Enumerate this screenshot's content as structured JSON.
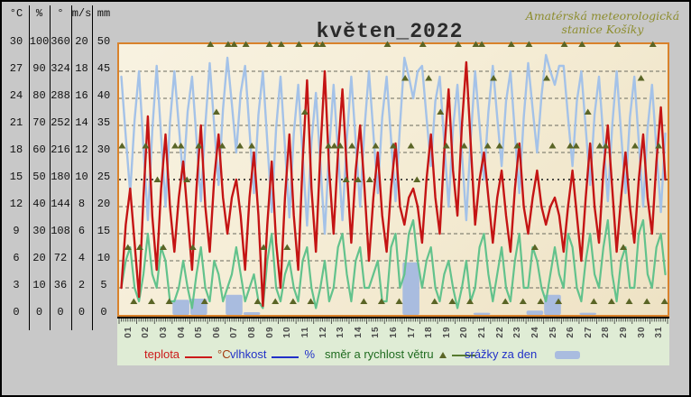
{
  "title": "květen_2022",
  "station": {
    "line1": "Amatérská meteorologická",
    "line2": "stanice Košíky"
  },
  "scale_table": {
    "headers": [
      "°C",
      "%",
      "°",
      "m/s",
      "mm"
    ],
    "rows": [
      [
        "30",
        "100",
        "360",
        "20",
        "50"
      ],
      [
        "27",
        "90",
        "324",
        "18",
        "45"
      ],
      [
        "24",
        "80",
        "288",
        "16",
        "40"
      ],
      [
        "21",
        "70",
        "252",
        "14",
        "35"
      ],
      [
        "18",
        "60",
        "216",
        "12",
        "30"
      ],
      [
        "15",
        "50",
        "180",
        "10",
        "25"
      ],
      [
        "12",
        "40",
        "144",
        "8",
        "20"
      ],
      [
        "9",
        "30",
        "108",
        "6",
        "15"
      ],
      [
        "6",
        "20",
        "72",
        "4",
        "10"
      ],
      [
        "3",
        "10",
        "36",
        "2",
        "5"
      ],
      [
        "0",
        "0",
        "0",
        "0",
        "0"
      ]
    ]
  },
  "legend": {
    "temperature_label": "teplota",
    "temperature_unit": "°C",
    "humidity_label": "vlhkost",
    "humidity_unit": "%",
    "wind_label": "směr a rychlost větru",
    "precip_label": "srážky za den"
  },
  "colors": {
    "temperature": "#c41414",
    "humidity": "#a4c2e8",
    "wind_speed": "#62c28c",
    "wind_direction": "#5a6526",
    "precipitation": "#a9bcdf",
    "plot_border": "#d9822b",
    "gridline": "#6b6b5f",
    "mid_dotted_line": "#161616"
  },
  "chart_data": {
    "type": "line",
    "title": "květen_2022",
    "x_day_labels": [
      "01",
      "02",
      "03",
      "04",
      "05",
      "06",
      "07",
      "08",
      "09",
      "10",
      "11",
      "12",
      "13",
      "14",
      "15",
      "16",
      "17",
      "18",
      "19",
      "20",
      "21",
      "22",
      "23",
      "24",
      "25",
      "26",
      "27",
      "28",
      "29",
      "30",
      "31"
    ],
    "scales": {
      "temperature_c": [
        0,
        30
      ],
      "humidity_pct": [
        0,
        100
      ],
      "wind_direction_deg": [
        0,
        360
      ],
      "wind_speed_ms": [
        0,
        20
      ],
      "precipitation_mm": [
        0,
        50
      ]
    },
    "gridlines_at_c": [
      27,
      24,
      21,
      18,
      12,
      9,
      6,
      3
    ],
    "dotted_line_at_c": 15,
    "samples_per_day": 4,
    "temperature_c": [
      3,
      10,
      14,
      8,
      2,
      13,
      22,
      11,
      5,
      14,
      20,
      12,
      7,
      13,
      17,
      11,
      5,
      14,
      21,
      12,
      7,
      15,
      20,
      13,
      9,
      13,
      15,
      11,
      5,
      13,
      18,
      11,
      1,
      10,
      17,
      8,
      3,
      13,
      20,
      11,
      5,
      17,
      26,
      14,
      7,
      18,
      27,
      16,
      9,
      18,
      25,
      16,
      8,
      16,
      21,
      14,
      6,
      13,
      18,
      11,
      7,
      14,
      19,
      12,
      10,
      13,
      14,
      12,
      8,
      15,
      20,
      13,
      9,
      18,
      25,
      16,
      11,
      21,
      28,
      19,
      10,
      15,
      18,
      13,
      8,
      13,
      16,
      11,
      7,
      14,
      19,
      12,
      9,
      13,
      16,
      12,
      10,
      12,
      13,
      11,
      7,
      12,
      16,
      11,
      6,
      13,
      19,
      12,
      8,
      16,
      21,
      14,
      7,
      13,
      18,
      12,
      8,
      15,
      20,
      13,
      9,
      17,
      23,
      15
    ],
    "humidity_pct": [
      88,
      66,
      45,
      72,
      90,
      62,
      35,
      68,
      92,
      66,
      40,
      71,
      90,
      70,
      50,
      75,
      88,
      65,
      42,
      70,
      93,
      70,
      48,
      76,
      95,
      78,
      60,
      82,
      92,
      68,
      45,
      74,
      90,
      64,
      38,
      69,
      88,
      62,
      36,
      67,
      85,
      59,
      33,
      64,
      82,
      56,
      30,
      61,
      85,
      60,
      35,
      65,
      88,
      64,
      40,
      69,
      90,
      67,
      45,
      73,
      88,
      65,
      42,
      70,
      95,
      88,
      80,
      90,
      92,
      73,
      55,
      79,
      88,
      64,
      40,
      69,
      85,
      60,
      35,
      65,
      90,
      70,
      50,
      75,
      92,
      73,
      55,
      79,
      90,
      67,
      45,
      73,
      93,
      76,
      60,
      81,
      96,
      90,
      85,
      92,
      92,
      73,
      55,
      79,
      90,
      69,
      48,
      74,
      88,
      65,
      42,
      70,
      90,
      67,
      45,
      73,
      88,
      64,
      40,
      69,
      85,
      61,
      38,
      67
    ],
    "wind_speed_ms": [
      2,
      4,
      5,
      2,
      1,
      3,
      6,
      3,
      2,
      5,
      4,
      1,
      1,
      2,
      4,
      2,
      0.5,
      3,
      5,
      2,
      1,
      4,
      3,
      1,
      2,
      3,
      5,
      3,
      1,
      2,
      3,
      1,
      0.5,
      4,
      6,
      2,
      1,
      3,
      4,
      2,
      1,
      4,
      5,
      2,
      0.5,
      2,
      4,
      1,
      2,
      5,
      6,
      3,
      1,
      4,
      5,
      2,
      2,
      3,
      4,
      1,
      1,
      5,
      6,
      2,
      3,
      6,
      7,
      4,
      2,
      4,
      5,
      2,
      1,
      3,
      4,
      2,
      0.5,
      2,
      4,
      1,
      2,
      5,
      6,
      3,
      1,
      3,
      5,
      2,
      1,
      4,
      6,
      2,
      2,
      5,
      4,
      2,
      1,
      3,
      5,
      3,
      2,
      6,
      5,
      2,
      1,
      4,
      6,
      3,
      2,
      5,
      7,
      3,
      1,
      4,
      5,
      2,
      2,
      6,
      7,
      3,
      2,
      5,
      6,
      3
    ],
    "wind_direction_deg": [
      225,
      90,
      18,
      90,
      225,
      18,
      180,
      90,
      18,
      225,
      225,
      180,
      90,
      225,
      18,
      360,
      270,
      225,
      360,
      360,
      225,
      360,
      225,
      18,
      90,
      360,
      18,
      360,
      90,
      18,
      360,
      270,
      18,
      360,
      360,
      225,
      225,
      225,
      180,
      225,
      180,
      18,
      180,
      225,
      18,
      360,
      225,
      18,
      315,
      225,
      180,
      360,
      315,
      18,
      270,
      225,
      18,
      360,
      225,
      18,
      360,
      360,
      225,
      315,
      225,
      18,
      360,
      225,
      18,
      360,
      90,
      18,
      315,
      225,
      18,
      360,
      225,
      225,
      360,
      270,
      18,
      225,
      225,
      18,
      360,
      90,
      18,
      225,
      315,
      18,
      360,
      225,
      18
    ],
    "precipitation_mm": [
      0,
      0,
      0,
      2.8,
      3,
      0,
      3.7,
      0.5,
      0,
      0,
      0,
      0,
      0,
      0,
      0,
      0,
      9.7,
      0,
      0,
      0,
      0.4,
      0,
      0,
      0.8,
      3.7,
      0,
      0.4,
      0,
      0,
      0,
      0
    ]
  }
}
